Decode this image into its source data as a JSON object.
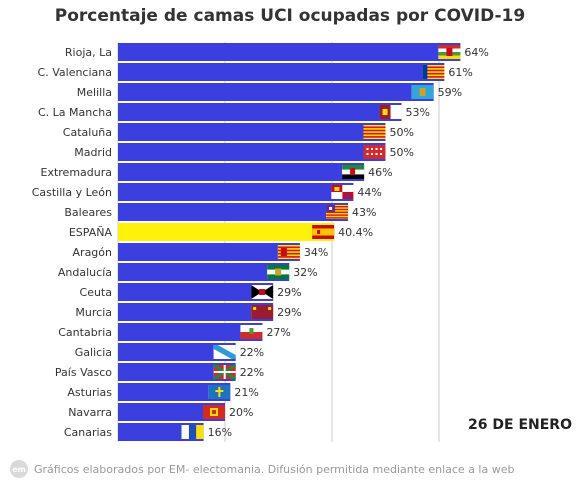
{
  "chart_data": {
    "type": "bar",
    "orientation": "horizontal",
    "title": "Porcentaje de camas UCI ocupadas por COVID-19",
    "categories": [
      "Rioja, La",
      "C. Valenciana",
      "Melilla",
      "C. La Mancha",
      "Cataluña",
      "Madrid",
      "Extremadura",
      "Castilla y León",
      "Baleares",
      "ESPAÑA",
      "Aragón",
      "Andalucía",
      "Ceuta",
      "Murcia",
      "Cantabria",
      "Galicia",
      "País Vasco",
      "Asturias",
      "Navarra",
      "Canarias"
    ],
    "values": [
      64,
      61,
      59,
      53,
      50,
      50,
      46,
      44,
      43,
      40.4,
      34,
      32,
      29,
      29,
      27,
      22,
      22,
      21,
      20,
      16
    ],
    "value_labels": [
      "64%",
      "61%",
      "59%",
      "53%",
      "50%",
      "50%",
      "46%",
      "44%",
      "43%",
      "40.4%",
      "34%",
      "32%",
      "29%",
      "29%",
      "27%",
      "22%",
      "22%",
      "21%",
      "20%",
      "16%"
    ],
    "highlight_category": "ESPAÑA",
    "bar_color": "#3b3fe0",
    "highlight_color": "#fff20a",
    "grid": true,
    "legend": "none",
    "flags": [
      "rioja-flag-icon",
      "valencia-flag-icon",
      "melilla-flag-icon",
      "castilla-la-mancha-flag-icon",
      "catalonia-flag-icon",
      "madrid-flag-icon",
      "extremadura-flag-icon",
      "castilla-leon-flag-icon",
      "baleares-flag-icon",
      "spain-flag-icon",
      "aragon-flag-icon",
      "andalucia-flag-icon",
      "ceuta-flag-icon",
      "murcia-flag-icon",
      "cantabria-flag-icon",
      "galicia-flag-icon",
      "pais-vasco-flag-icon",
      "asturias-flag-icon",
      "navarra-flag-icon",
      "canarias-flag-icon"
    ]
  },
  "date": "26 DE ENERO",
  "footer": {
    "logo": "em",
    "text": "Gráficos elaborados por EM- electomania. Difusión permitida mediante enlace a la web"
  }
}
